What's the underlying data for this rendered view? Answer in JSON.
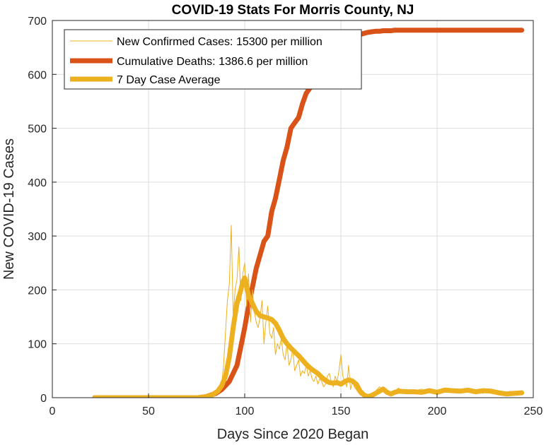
{
  "chart_data": {
    "type": "line",
    "title": "COVID-19 Stats For Morris County, NJ",
    "xlabel": "Days Since 2020 Began",
    "ylabel": "New COVID-19 Cases",
    "xlim": [
      0,
      250
    ],
    "ylim": [
      0,
      700
    ],
    "xticks": [
      0,
      50,
      100,
      150,
      200,
      250
    ],
    "yticks": [
      0,
      100,
      200,
      300,
      400,
      500,
      600,
      700
    ],
    "grid": true,
    "legend_position": "top-left",
    "series": [
      {
        "name": "New Confirmed Cases: 15300 per million",
        "color": "#EDB120",
        "style": "thin",
        "x": [
          22,
          40,
          60,
          75,
          80,
          82,
          84,
          86,
          88,
          89,
          90,
          91,
          92,
          93,
          94,
          95,
          96,
          97,
          98,
          99,
          100,
          101,
          102,
          103,
          104,
          105,
          106,
          107,
          108,
          109,
          110,
          111,
          112,
          113,
          114,
          115,
          116,
          117,
          118,
          119,
          120,
          121,
          122,
          123,
          124,
          125,
          126,
          127,
          128,
          129,
          130,
          131,
          132,
          133,
          134,
          135,
          136,
          137,
          138,
          139,
          140,
          141,
          142,
          143,
          144,
          145,
          146,
          147,
          148,
          149,
          150,
          151,
          152,
          153,
          154,
          155,
          156,
          157,
          158,
          159,
          160,
          162,
          164,
          166,
          168,
          170,
          172,
          174,
          176,
          178,
          180,
          182,
          184,
          186,
          188,
          190,
          192,
          194,
          196,
          198,
          200,
          202,
          204,
          206,
          208,
          210,
          212,
          214,
          216,
          218,
          220,
          222,
          224,
          226,
          228,
          230,
          232,
          234,
          236,
          238,
          240,
          242,
          244
        ],
        "values": [
          0,
          0,
          0,
          0,
          5,
          2,
          10,
          15,
          25,
          60,
          120,
          180,
          210,
          320,
          150,
          200,
          220,
          280,
          180,
          230,
          250,
          170,
          230,
          140,
          200,
          160,
          140,
          130,
          150,
          180,
          100,
          140,
          170,
          120,
          110,
          130,
          80,
          100,
          90,
          110,
          80,
          70,
          100,
          60,
          70,
          90,
          50,
          60,
          70,
          40,
          50,
          45,
          60,
          40,
          50,
          35,
          30,
          40,
          25,
          35,
          30,
          20,
          25,
          40,
          45,
          30,
          20,
          40,
          30,
          50,
          80,
          40,
          30,
          20,
          60,
          15,
          30,
          20,
          15,
          10,
          5,
          3,
          0,
          8,
          12,
          20,
          15,
          10,
          8,
          12,
          18,
          10,
          15,
          12,
          10,
          14,
          16,
          12,
          10,
          8,
          12,
          15,
          10,
          14,
          12,
          10,
          15,
          12,
          18,
          10,
          14,
          12,
          8,
          15,
          10,
          12,
          8,
          10,
          6,
          12,
          8,
          10,
          5
        ]
      },
      {
        "name": "Cumulative Deaths: 1386.6 per million",
        "color": "#D95319",
        "style": "thick",
        "x": [
          22,
          40,
          60,
          76,
          80,
          85,
          88,
          92,
          96,
          98,
          100,
          102,
          104,
          106,
          108,
          110,
          112,
          114,
          116,
          118,
          120,
          122,
          124,
          126,
          128,
          130,
          132,
          134,
          136,
          138,
          140,
          142,
          144,
          146,
          148,
          150,
          152,
          154,
          156,
          158,
          160,
          162,
          164,
          166,
          168,
          170,
          172,
          174,
          176,
          178,
          180,
          182,
          184,
          186,
          188,
          190,
          192,
          194,
          196,
          198,
          200,
          202,
          204,
          206,
          208,
          210,
          212,
          214,
          216,
          218,
          220,
          222,
          224,
          226,
          228,
          230,
          232,
          234,
          236,
          238,
          240,
          242,
          244
        ],
        "values": [
          0,
          0,
          0,
          0,
          2,
          8,
          15,
          30,
          60,
          95,
          130,
          170,
          205,
          240,
          265,
          290,
          300,
          345,
          370,
          405,
          440,
          465,
          500,
          510,
          520,
          545,
          565,
          575,
          590,
          600,
          620,
          635,
          645,
          650,
          655,
          660,
          665,
          668,
          670,
          672,
          674,
          676,
          678,
          679,
          680,
          680,
          681,
          681,
          681,
          682,
          682,
          682,
          682,
          682,
          682,
          682,
          682,
          682,
          682,
          682,
          682,
          682,
          682,
          682,
          682,
          682,
          682,
          682,
          682,
          682,
          682,
          682,
          682,
          682,
          682,
          682,
          682,
          682,
          682,
          682,
          682,
          682,
          682
        ]
      },
      {
        "name": "7 Day Case Average",
        "color": "#EDB120",
        "style": "thick",
        "x": [
          22,
          40,
          60,
          76,
          80,
          83,
          86,
          88,
          90,
          92,
          94,
          96,
          98,
          99,
          100,
          102,
          104,
          106,
          108,
          110,
          112,
          114,
          116,
          118,
          120,
          122,
          124,
          126,
          128,
          130,
          132,
          134,
          136,
          138,
          140,
          142,
          144,
          146,
          148,
          150,
          152,
          154,
          156,
          158,
          160,
          162,
          164,
          166,
          168,
          170,
          172,
          174,
          176,
          178,
          180,
          184,
          188,
          192,
          196,
          200,
          204,
          208,
          212,
          216,
          220,
          224,
          228,
          232,
          236,
          240,
          244
        ],
        "values": [
          0,
          0,
          0,
          0,
          2,
          5,
          12,
          22,
          40,
          75,
          130,
          175,
          200,
          215,
          222,
          190,
          175,
          160,
          152,
          150,
          148,
          145,
          138,
          125,
          110,
          100,
          92,
          85,
          78,
          70,
          62,
          55,
          50,
          45,
          38,
          32,
          28,
          27,
          28,
          25,
          30,
          33,
          31,
          25,
          12,
          5,
          2,
          4,
          8,
          12,
          16,
          10,
          7,
          10,
          12,
          11,
          11,
          10,
          13,
          10,
          14,
          13,
          12,
          14,
          11,
          13,
          12,
          9,
          7,
          8,
          9
        ]
      }
    ]
  }
}
